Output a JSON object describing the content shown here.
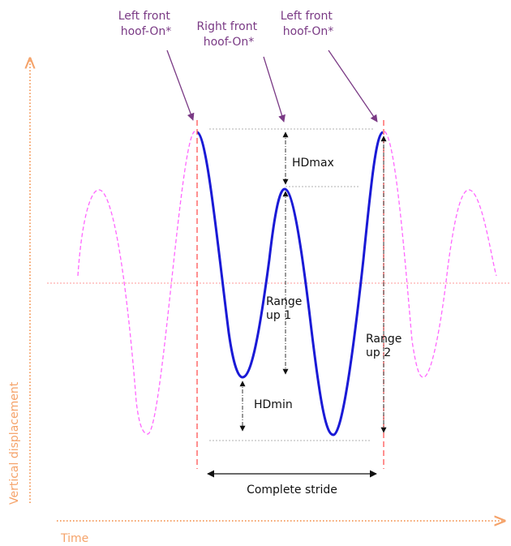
{
  "hoof_labels": [
    {
      "line1": "Left front",
      "line2": "hoof-On*"
    },
    {
      "line1": "Right front",
      "line2": "hoof-On*"
    },
    {
      "line1": "Left front",
      "line2": "hoof-On*"
    }
  ],
  "measures": {
    "hdmax": "HDmax",
    "hdmin": "HDmin",
    "range_up_1": {
      "line1": "Range",
      "line2": "up 1"
    },
    "range_up_2": {
      "line1": "Range",
      "line2": "up 2"
    },
    "stride": "Complete stride"
  },
  "axes": {
    "y_label": "Vertical displacement",
    "x_label": "Time"
  },
  "colors": {
    "stride_curve": "#1a1ad6",
    "extended_curve": "#ff66ff",
    "hoof_line": "#ff5555",
    "arrow": "#7a3a85",
    "axis": "#f5a36a",
    "measure": "#333333",
    "guide": "#b0b0b0"
  }
}
